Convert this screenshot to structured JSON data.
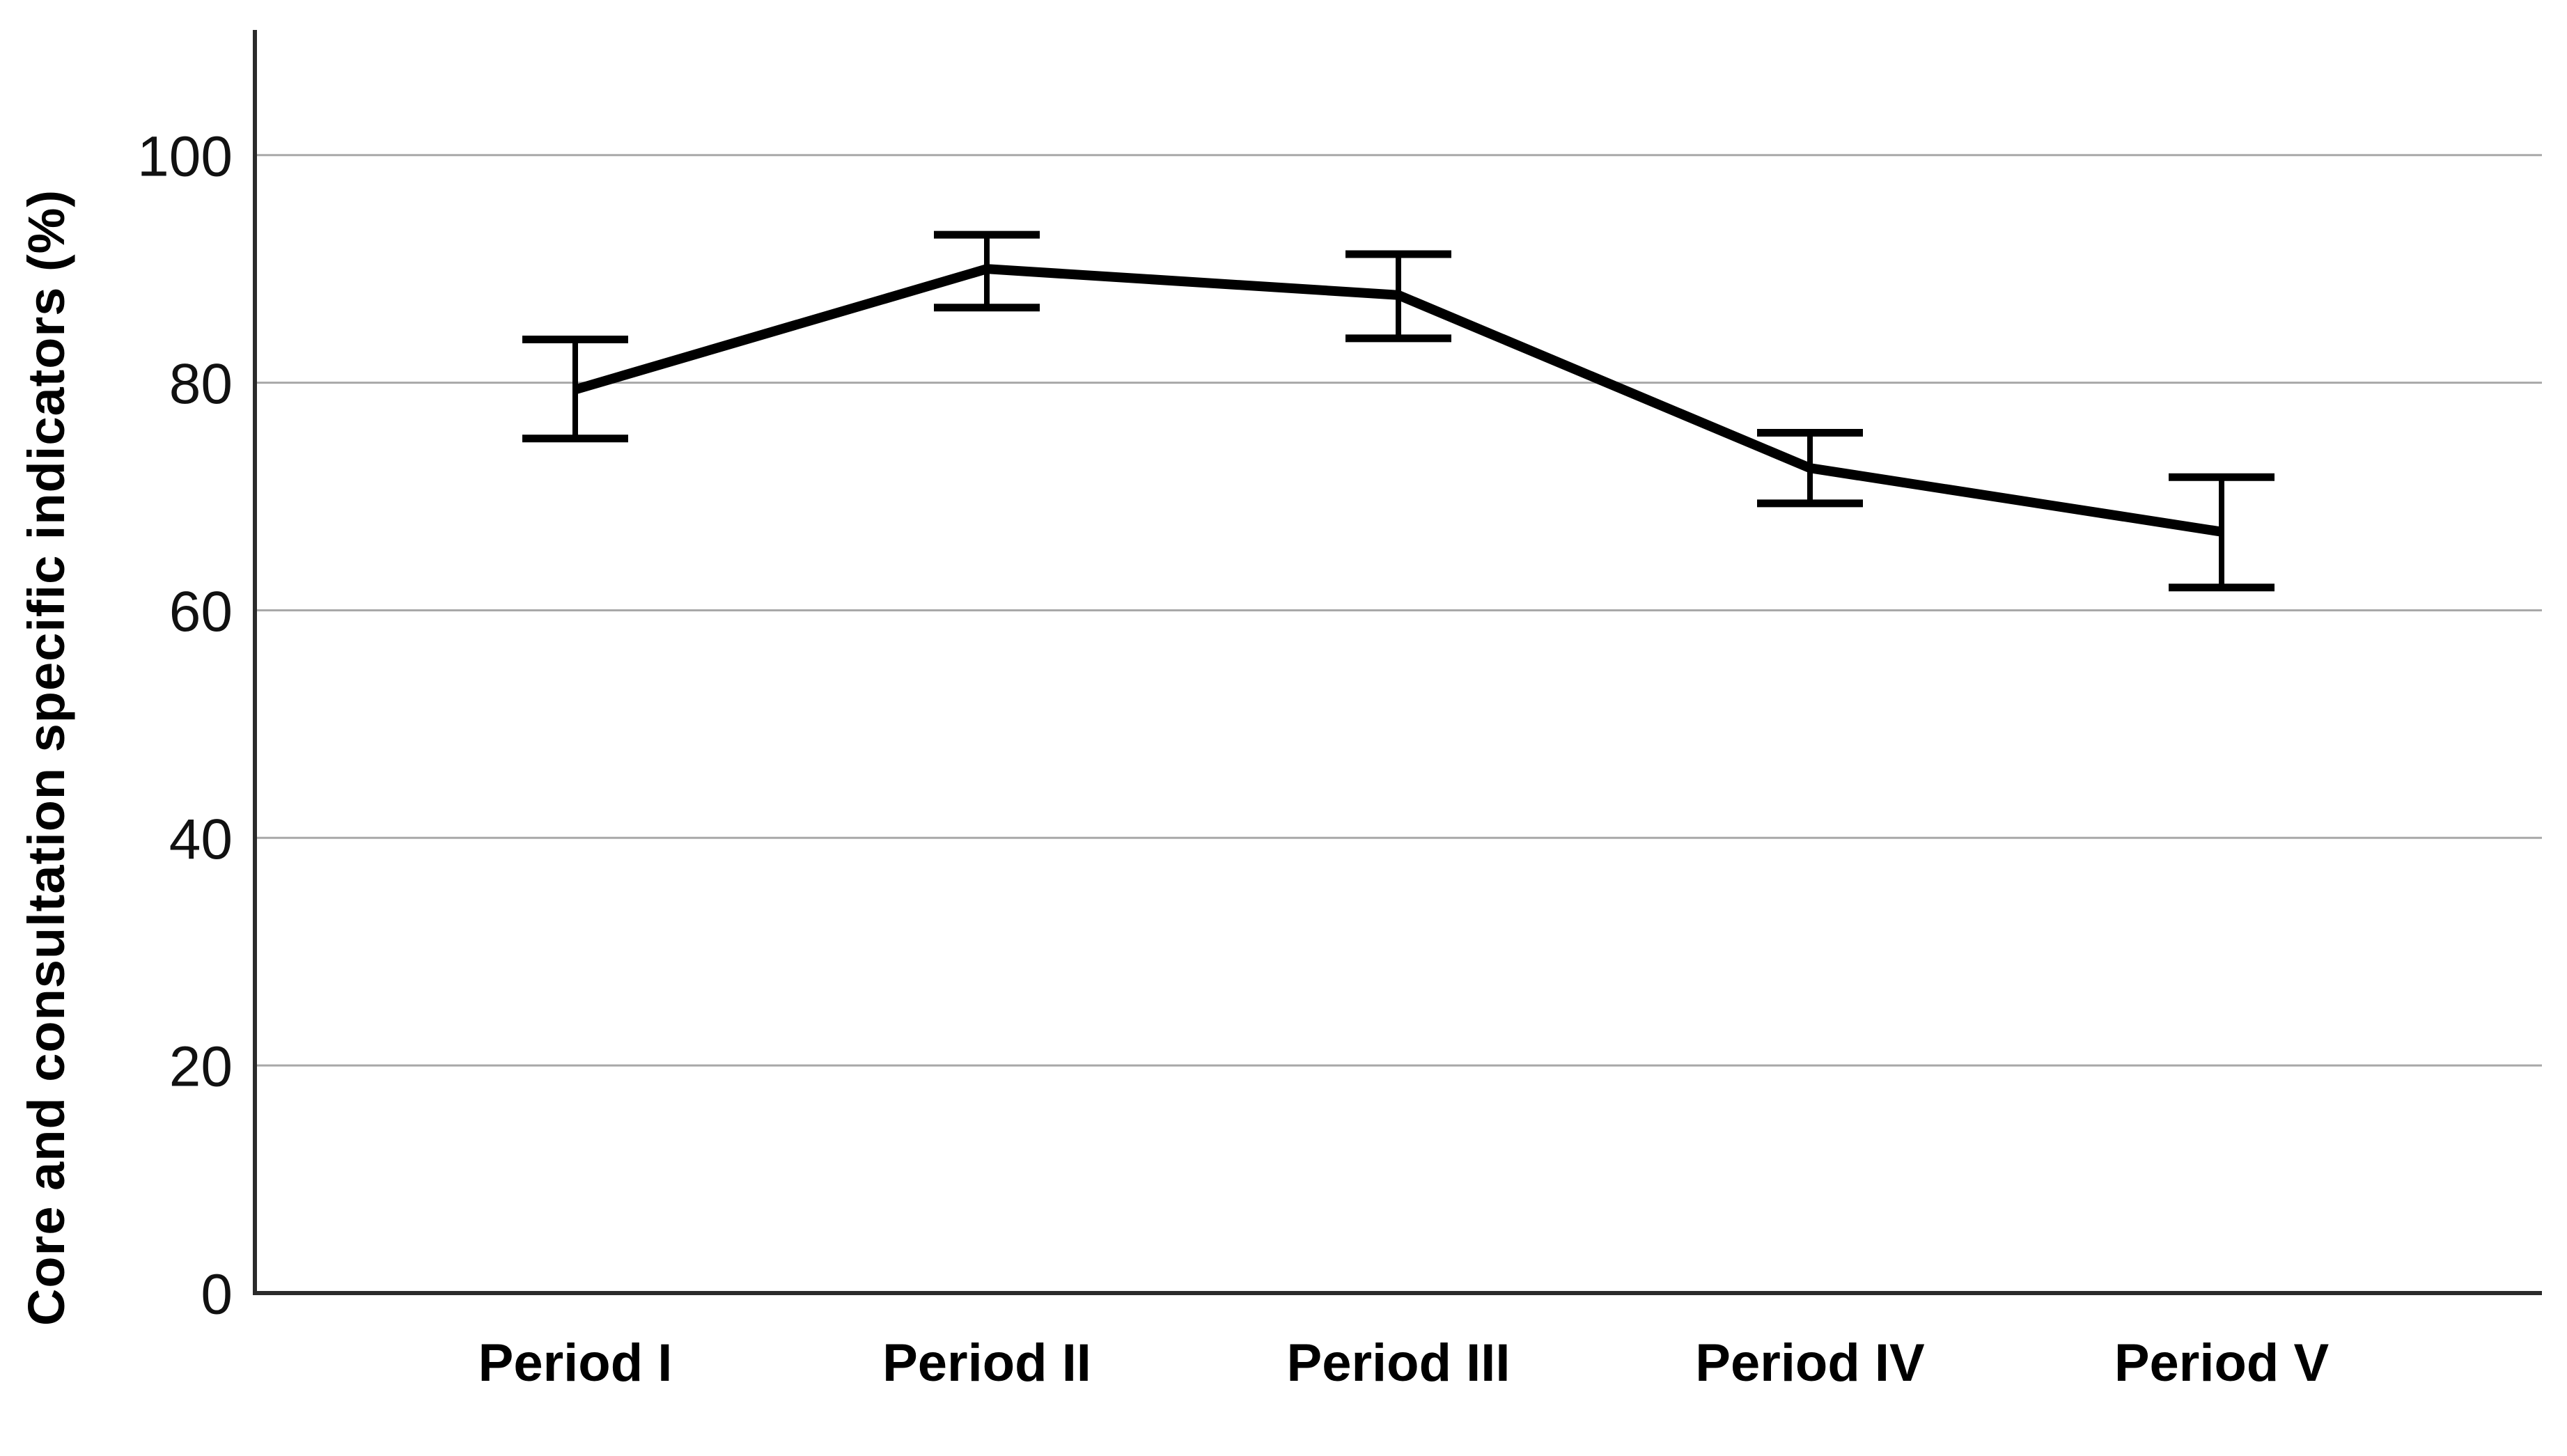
{
  "chart_data": {
    "type": "line",
    "title": "",
    "xlabel": "",
    "ylabel": "Core and consultation specific indicators (%)",
    "categories": [
      "Period I",
      "Period II",
      "Period III",
      "Period IV",
      "Period V"
    ],
    "series": [
      {
        "name": "Core and consultation specific indicators (%)",
        "values": [
          79.4,
          90.0,
          87.7,
          72.5,
          66.9
        ],
        "ci_low": [
          75.1,
          86.6,
          83.9,
          69.4,
          62.0
        ],
        "ci_high": [
          83.8,
          93.0,
          91.3,
          75.6,
          71.7
        ]
      }
    ],
    "error_bars": true,
    "markers": "none",
    "yticks": [
      0,
      20,
      40,
      60,
      80,
      100
    ],
    "ylim": [
      0,
      111
    ],
    "grid": "horizontal",
    "legend_position": "none",
    "colors": {
      "line": "#000000",
      "error_bar": "#000000",
      "grid": "#a8a8a8",
      "axis": "#2b2b2b",
      "text": "#000000",
      "background": "#ffffff"
    }
  }
}
